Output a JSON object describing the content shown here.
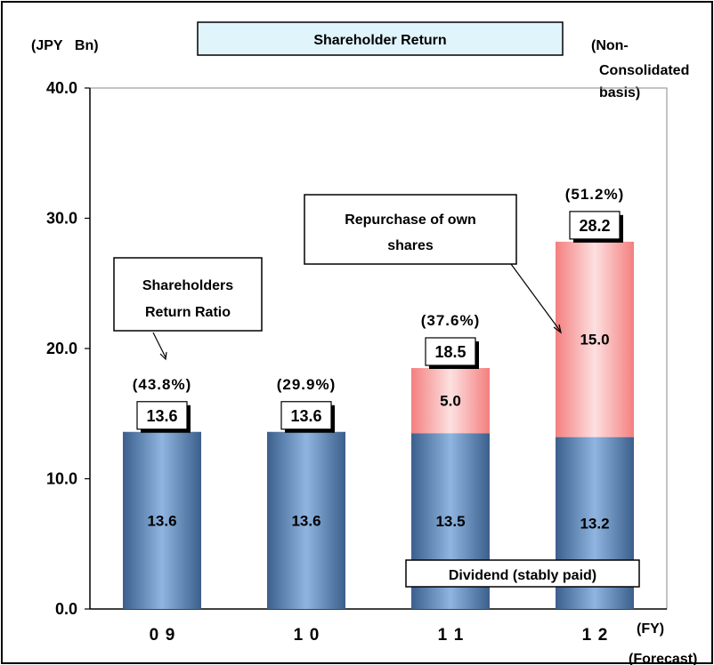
{
  "header": {
    "title": "Shareholder Return",
    "unit": "(JPY   Bn)",
    "basis_line1": "(Non-",
    "basis_line2": "Consolidated",
    "basis_line3": "basis)",
    "fy_label": "(FY)",
    "forecast_label": "(Forecast)"
  },
  "annotations": {
    "ratio_callout": [
      "Shareholders",
      "Return Ratio"
    ],
    "repurchase_callout": [
      "Repurchase of own",
      "shares"
    ],
    "dividend_label": "Dividend (stably paid)"
  },
  "colors": {
    "dividend": "#5f88b8",
    "repurchase": "#f79a9a",
    "title_box": "#dff4fb"
  },
  "chart_data": {
    "type": "bar",
    "stacked": true,
    "categories": [
      "09",
      "10",
      "11",
      "12"
    ],
    "ylim": [
      0,
      40
    ],
    "yticks": [
      "0.0",
      "10.0",
      "20.0",
      "30.0",
      "40.0"
    ],
    "series": [
      {
        "name": "Dividend",
        "values": [
          13.6,
          13.6,
          13.5,
          13.2
        ],
        "labels": [
          "13.6",
          "13.6",
          "13.5",
          "13.2"
        ]
      },
      {
        "name": "Repurchase of own shares",
        "values": [
          0,
          0,
          5.0,
          15.0
        ],
        "labels": [
          "",
          "",
          "5.0",
          "15.0"
        ]
      }
    ],
    "totals": [
      "13.6",
      "13.6",
      "18.5",
      "28.2"
    ],
    "ratios": [
      "(43.8%)",
      "(29.9%)",
      "(37.6%)",
      "(51.2%)"
    ]
  }
}
